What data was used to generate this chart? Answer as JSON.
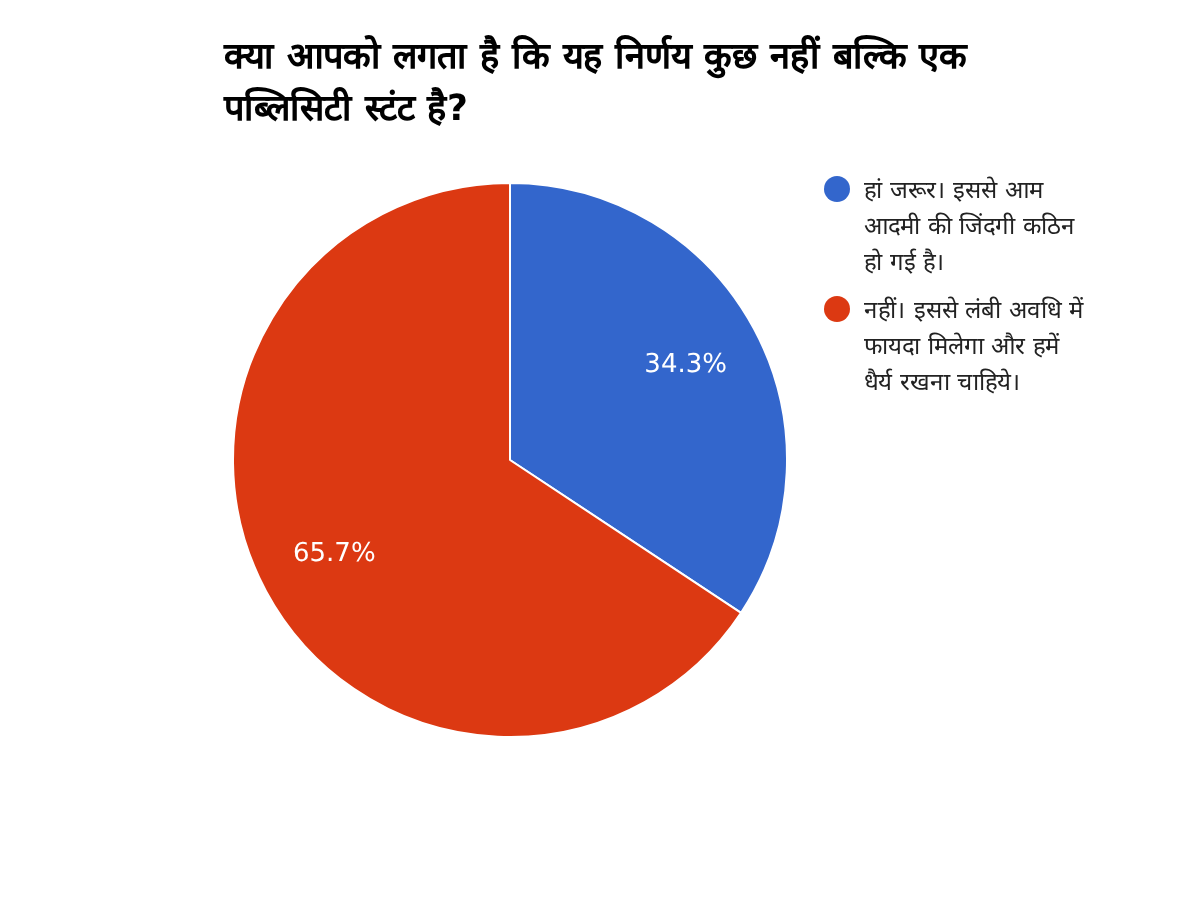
{
  "chart_data": {
    "type": "pie",
    "title": "क्या आपको लगता है कि यह निर्णय कुछ नहीं बल्कि एक पब्लिसिटी स्टंट है?",
    "categories": [
      "हां जरूर। इससे आम आदमी की जिंदगी कठिन हो गई है।",
      "नहीं। इससे लंबी अवधि में फायदा मिलेगा और हमें धैर्य रखना चाहिये।"
    ],
    "values": [
      34.3,
      65.7
    ],
    "colors": [
      "#3366cc",
      "#dc3912"
    ],
    "value_labels": [
      "34.3%",
      "65.7%"
    ],
    "legend": "right"
  }
}
